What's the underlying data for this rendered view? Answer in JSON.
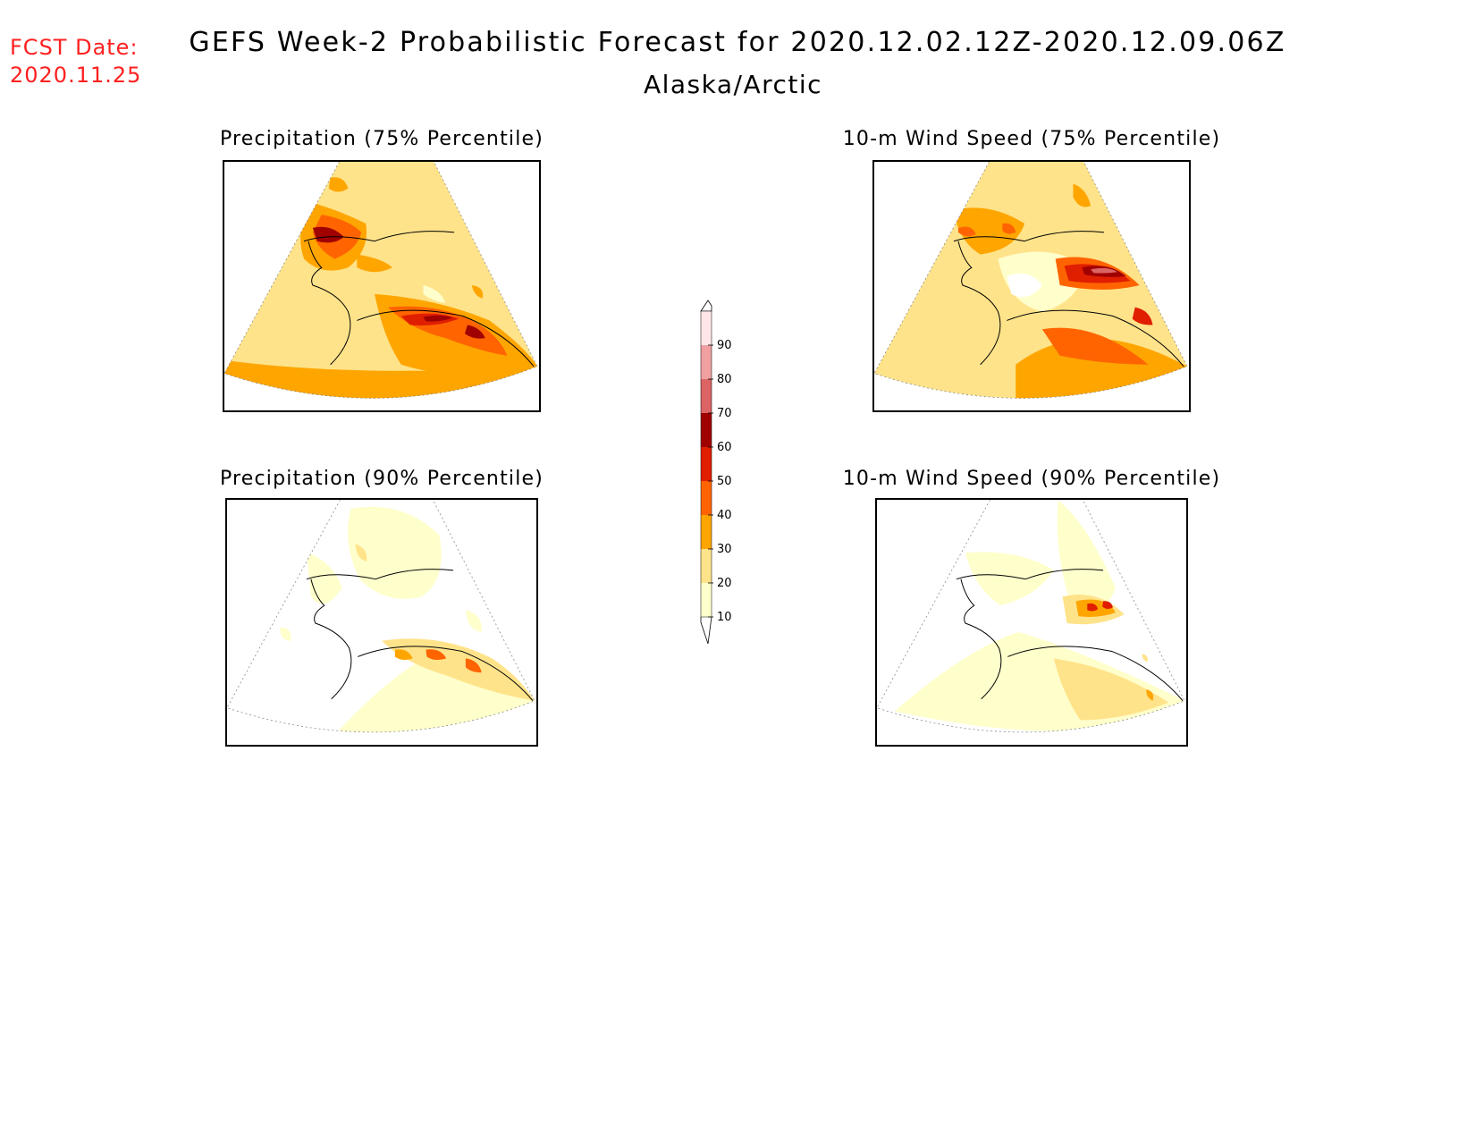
{
  "header": {
    "fcst_label": "FCST Date:",
    "fcst_date": "2020.11.25",
    "title": "GEFS Week-2 Probabilistic Forecast for 2020.12.02.12Z-2020.12.09.06Z",
    "subtitle": "Alaska/Arctic"
  },
  "panels": [
    {
      "id": "precip75",
      "title": "Precipitation (75% Percentile)"
    },
    {
      "id": "wind75",
      "title": "10-m Wind Speed (75% Percentile)"
    },
    {
      "id": "precip90",
      "title": "Precipitation (90% Percentile)"
    },
    {
      "id": "wind90",
      "title": "10-m Wind Speed (90% Percentile)"
    }
  ],
  "colorbar": {
    "levels": [
      "10",
      "20",
      "30",
      "40",
      "50",
      "60",
      "70",
      "80",
      "90"
    ],
    "colors": [
      "#ffffcc",
      "#ffe38a",
      "#ffa500",
      "#ff6400",
      "#e01e00",
      "#a00000",
      "#dc6464",
      "#f0a0a0",
      "#ffe6e6"
    ]
  }
}
